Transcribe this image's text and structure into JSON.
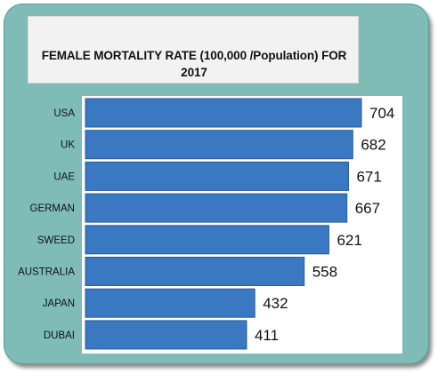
{
  "chart_data": {
    "type": "bar",
    "orientation": "horizontal",
    "title": "FEMALE MORTALITY RATE (100,000 /Population) FOR 2017",
    "title_lines": [
      "FEMALE MORTALITY RATE (100,000 /Population) FOR",
      "2017"
    ],
    "categories": [
      "USA",
      "UK",
      "UAE",
      "GERMAN",
      "SWEED",
      "AUSTRALIA",
      "JAPAN",
      "DUBAI"
    ],
    "values": [
      704,
      682,
      671,
      667,
      621,
      558,
      432,
      411
    ],
    "value_labels": [
      "704",
      "682",
      "671",
      "667",
      "621",
      "558",
      "432",
      "411"
    ],
    "xlabel": "",
    "ylabel": "",
    "xlim": [
      0,
      740
    ],
    "grid": false,
    "legend": "none",
    "colors": {
      "bar": "#3a78c2",
      "bar_edge": "#2a5c99",
      "frame": "#7fbcb7",
      "plot_background": "#ffffff",
      "title_background": "#f2f2f2"
    }
  }
}
